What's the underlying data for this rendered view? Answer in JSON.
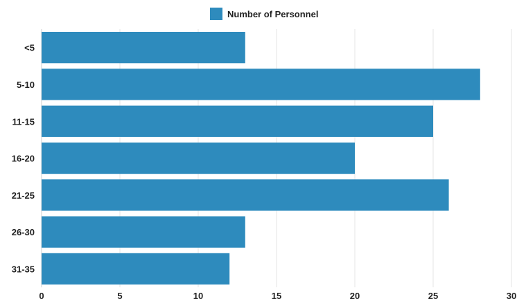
{
  "chart_data": {
    "type": "bar",
    "orientation": "horizontal",
    "title": "",
    "xlabel": "",
    "ylabel": "",
    "categories": [
      "<5",
      "5-10",
      "11-15",
      "16-20",
      "21-25",
      "26-30",
      "31-35"
    ],
    "series": [
      {
        "name": "Number of Personnel",
        "values": [
          13,
          28,
          25,
          20,
          26,
          13,
          12
        ]
      }
    ],
    "xlim": [
      0,
      30
    ],
    "xticks": [
      0,
      5,
      10,
      15,
      20,
      25,
      30
    ],
    "grid": true,
    "legend_position": "top-center",
    "colors": {
      "bar": "#2e8bbd",
      "grid": "#e6e6e6"
    }
  }
}
